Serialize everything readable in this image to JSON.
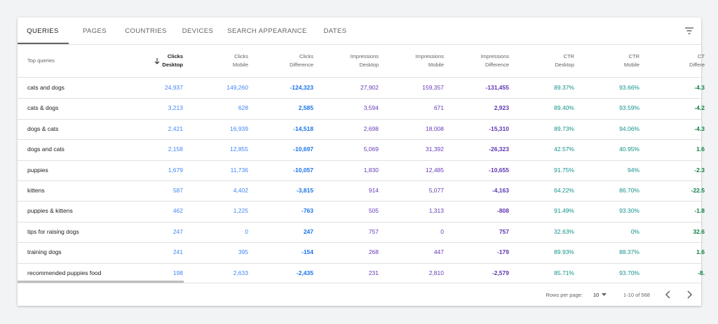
{
  "tabs": [
    "QUERIES",
    "PAGES",
    "COUNTRIES",
    "DEVICES",
    "SEARCH APPEARANCE",
    "DATES"
  ],
  "table": {
    "columns": [
      [
        "Top queries"
      ],
      [
        "Clicks",
        "Desktop"
      ],
      [
        "Clicks",
        "Mobile"
      ],
      [
        "Clicks",
        "Difference"
      ],
      [
        "Impressions",
        "Desktop"
      ],
      [
        "Impressions",
        "Mobile"
      ],
      [
        "Impressions",
        "Difference"
      ],
      [
        "CTR",
        "Desktop"
      ],
      [
        "CTR",
        "Mobile"
      ],
      [
        "CT",
        "Differe"
      ]
    ],
    "rows": [
      [
        "cats and dogs",
        "24,937",
        "149,260",
        "-124,323",
        "27,902",
        "159,357",
        "-131,455",
        "89.37%",
        "93.66%",
        "-4.3"
      ],
      [
        "cats & dogs",
        "3,213",
        "628",
        "2,585",
        "3,594",
        "671",
        "2,923",
        "89.40%",
        "93.59%",
        "-4.2"
      ],
      [
        "dogs & cats",
        "2,421",
        "16,939",
        "-14,518",
        "2,698",
        "18,008",
        "-15,310",
        "89.73%",
        "94.06%",
        "-4.3"
      ],
      [
        "dogs and cats",
        "2,158",
        "12,855",
        "-10,697",
        "5,069",
        "31,392",
        "-26,323",
        "42.57%",
        "40.95%",
        "1.6"
      ],
      [
        "puppies",
        "1,679",
        "11,736",
        "-10,057",
        "1,830",
        "12,485",
        "-10,655",
        "91.75%",
        "94%",
        "-2.3"
      ],
      [
        "kittens",
        "587",
        "4,402",
        "-3,815",
        "914",
        "5,077",
        "-4,163",
        "64.22%",
        "86.70%",
        "-22.5"
      ],
      [
        "puppies & kittens",
        "462",
        "1,225",
        "-763",
        "505",
        "1,313",
        "-808",
        "91.49%",
        "93.30%",
        "-1.8"
      ],
      [
        "tips for raising dogs",
        "247",
        "0",
        "247",
        "757",
        "0",
        "757",
        "32.63%",
        "0%",
        "32.6"
      ],
      [
        "training dogs",
        "241",
        "395",
        "-154",
        "268",
        "447",
        "-179",
        "89.93%",
        "88.37%",
        "1.6"
      ],
      [
        "recommended puppies food",
        "198",
        "2,633",
        "-2,435",
        "231",
        "2,810",
        "-2,579",
        "85.71%",
        "93.70%",
        "-8."
      ]
    ]
  },
  "footer": {
    "rows_per_page_label": "Rows per page:",
    "rows_per_page": "10",
    "range": "1-10 of 568"
  }
}
